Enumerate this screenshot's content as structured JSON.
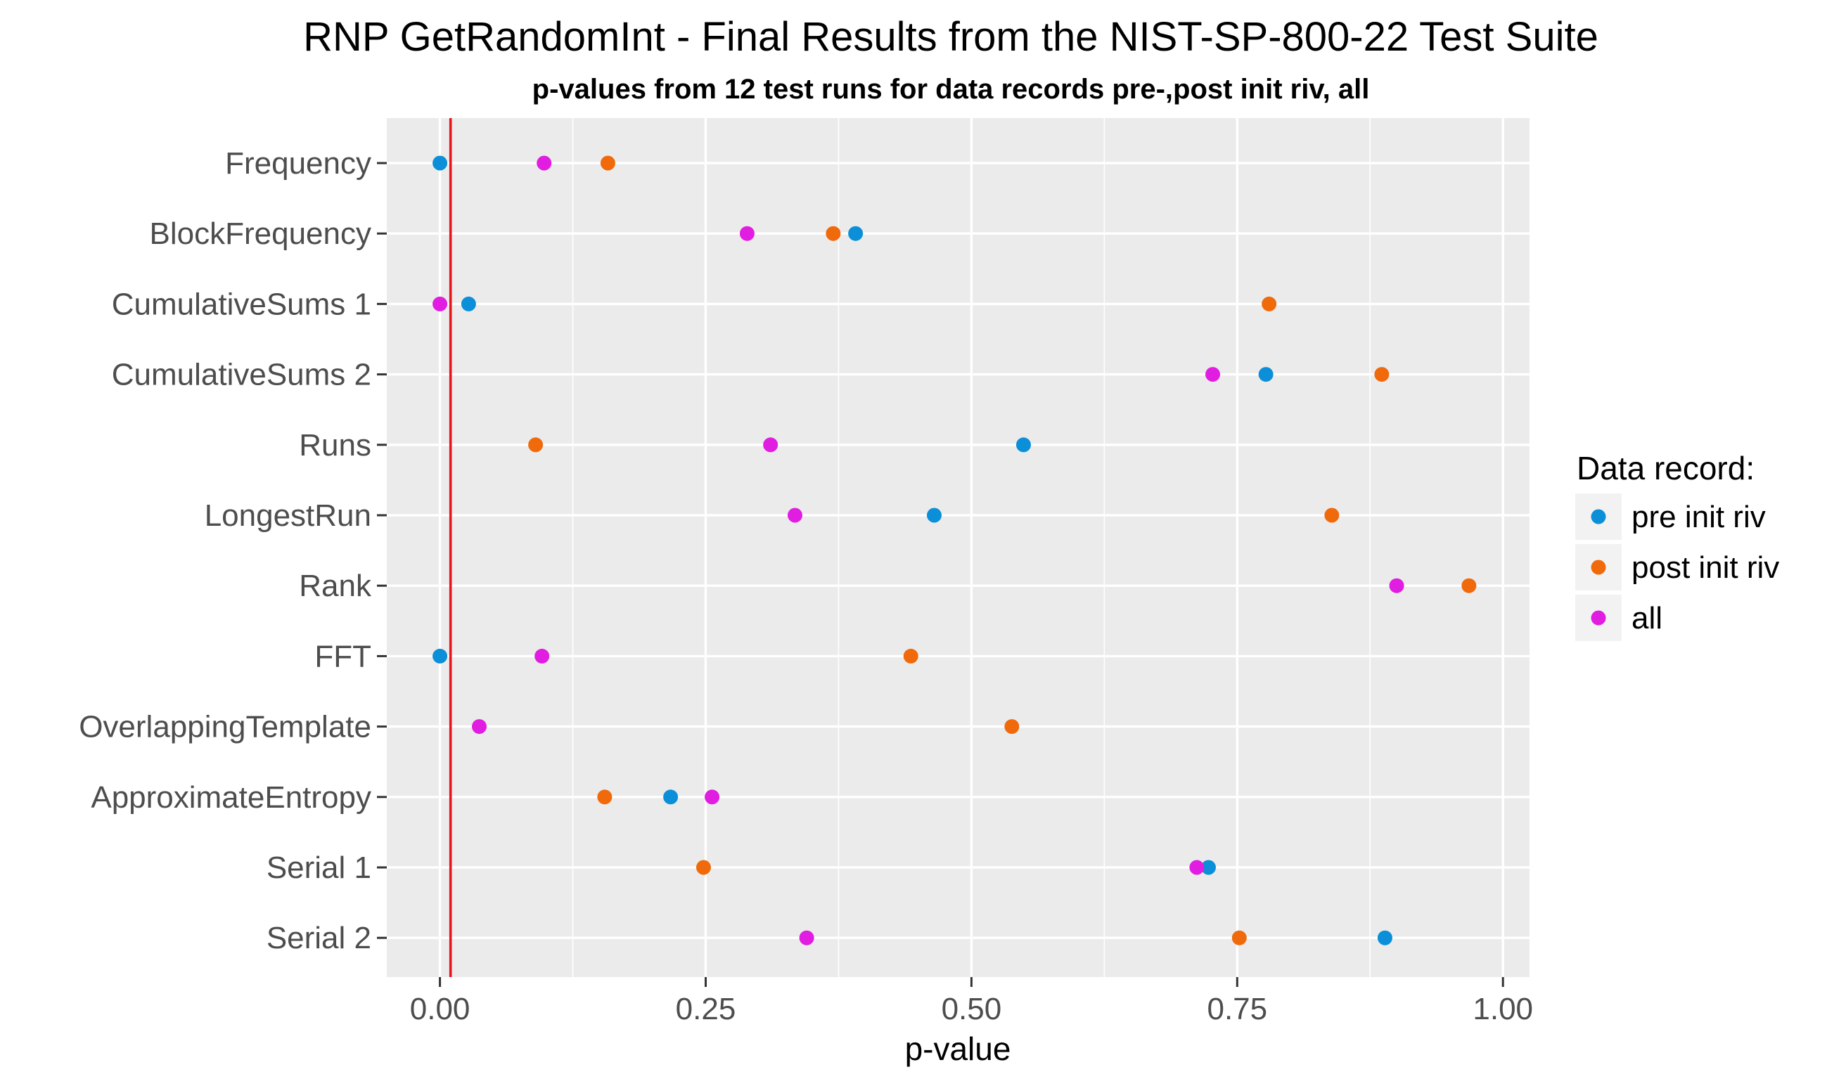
{
  "chart_data": {
    "type": "scatter",
    "title": "RNP GetRandomInt - Final Results from the NIST-SP-800-22 Test Suite",
    "subtitle": "p-values from 12 test runs for data records pre-,post init riv, all",
    "xlabel": "p-value",
    "ylabel": "",
    "xlim": [
      -0.05,
      1.025
    ],
    "xticks": [
      0.0,
      0.25,
      0.5,
      0.75,
      1.0
    ],
    "xtick_labels": [
      "0.00",
      "0.25",
      "0.50",
      "0.75",
      "1.00"
    ],
    "categories": [
      "Frequency",
      "BlockFrequency",
      "CumulativeSums 1",
      "CumulativeSums 2",
      "Runs",
      "LongestRun",
      "Rank",
      "FFT",
      "OverlappingTemplate",
      "ApproximateEntropy",
      "Serial 1",
      "Serial 2"
    ],
    "reference_line": {
      "x": 0.01,
      "color": "#e8141b"
    },
    "grid": true,
    "legend": {
      "title": "Data record:",
      "placement": "right"
    },
    "series": [
      {
        "name": "pre init riv",
        "color": "#0b8fd8",
        "values": [
          0.0,
          0.391,
          0.027,
          0.777,
          0.549,
          0.465,
          null,
          0.0,
          null,
          0.217,
          0.723,
          0.889
        ]
      },
      {
        "name": "post init riv",
        "color": "#f06a0c",
        "values": [
          0.158,
          0.37,
          0.78,
          0.886,
          0.09,
          0.839,
          0.968,
          0.443,
          0.538,
          0.155,
          0.248,
          0.752
        ]
      },
      {
        "name": "all",
        "color": "#e01de0",
        "values": [
          0.098,
          0.289,
          0.0,
          0.727,
          0.311,
          0.334,
          0.9,
          0.096,
          0.037,
          0.256,
          0.712,
          0.345
        ]
      }
    ]
  }
}
